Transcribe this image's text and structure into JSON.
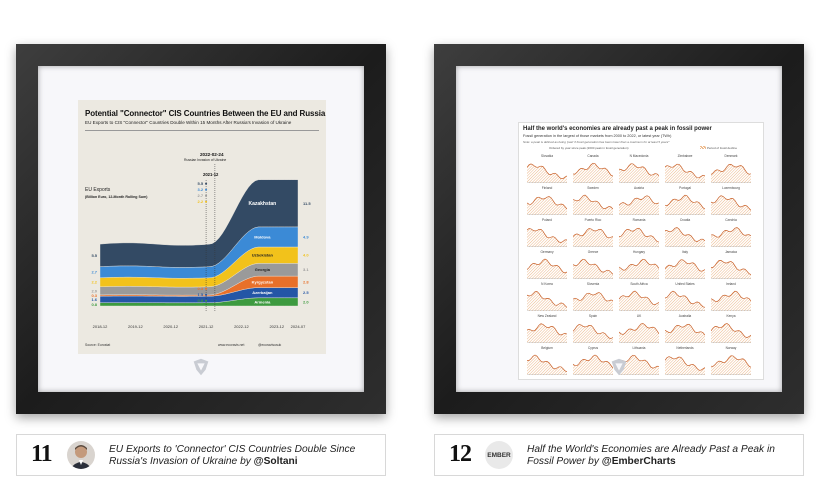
{
  "left_entry": {
    "number": "11",
    "title": "EU Exports to 'Connector' CIS Countries Double Since Russia's Invasion of Ukraine",
    "by": "by",
    "author": "@Soltani",
    "art": {
      "title": "Potential \"Connector\" CIS Countries Between the EU and Russia",
      "subtitle": "EU Exports to CIS \"Connector\" Countries Double Within 15 Months After Russia's Invasion of Ukraine",
      "ylabel_1": "EU Exports",
      "ylabel_2": "(Billion Euro, 12-Month Rolling Sum)",
      "annotation_date": "2022-02-24",
      "annotation_text": "Russian Invasion of Ukraine",
      "annotation_date2": "2021-12",
      "source": "Source: Eurostat",
      "website": "www.ecoravis.net",
      "twitter": "@ecoravisusuk"
    }
  },
  "right_entry": {
    "number": "12",
    "avatar_text": "EMBER",
    "title": "Half the World's Economies are Already Past a Peak in Fossil Power",
    "by": "by",
    "author": "@EmberCharts",
    "art": {
      "title": "Half the world's economies are already past a peak in fossil power",
      "subtitle": "Fossil generation in the largest of those markets from 2000 to 2022, or latest year (TWh)",
      "note": "Note: a peak is defined as being 'past' if fossil generation has been lower than a maximum for at least 5 years*",
      "legend_left": "Ordered by year since peak (2000 peak in fossil generation)",
      "legend_right": "Period of fossil decline"
    }
  },
  "chart_data": [
    {
      "type": "area",
      "title": "Potential \"Connector\" CIS Countries Between the EU and Russia",
      "subtitle": "EU Exports to CIS \"Connector\" Countries Double Within 15 Months After Russia's Invasion of Ukraine",
      "ylabel": "EU Exports (Billion Euro, 12-Month Rolling Sum)",
      "x": [
        "2018-12",
        "2019-12",
        "2020-12",
        "2021-12",
        "2022-12",
        "2023-12",
        "2024-07"
      ],
      "series": [
        {
          "name": "Armenia",
          "color": "#3d9a3f",
          "start": 0.8,
          "end": 2.0
        },
        {
          "name": "Azerbaijan",
          "color": "#2456a6",
          "start": 1.6,
          "end": 2.5
        },
        {
          "name": "Kyrgyzstan",
          "color": "#e8702a",
          "start": 0.3,
          "end": 2.8
        },
        {
          "name": "Georgia",
          "color": "#9a9a9a",
          "start": 2.0,
          "end": 3.1
        },
        {
          "name": "Uzbekistan",
          "color": "#f2c21b",
          "start": 2.2,
          "end": 4.0
        },
        {
          "name": "Moldova",
          "color": "#3b8ad6",
          "start": 2.7,
          "end": 4.9
        },
        {
          "name": "Kazakhstan",
          "color": "#334a64",
          "start": 5.5,
          "end": 11.5
        }
      ],
      "labels_2021_12": [
        "5.5",
        "3.2",
        "2.7",
        "2.2",
        "0.3",
        "1.5",
        "0.8"
      ],
      "left_values": [
        "5.5",
        "2.7",
        "2.2",
        "2.0",
        "0.3",
        "1.6",
        "0.8"
      ],
      "right_values": [
        "11.5",
        "4.9",
        "4.0",
        "3.1",
        "2.8",
        "2.5",
        "2.0"
      ]
    },
    {
      "type": "area",
      "title": "Half the world's economies are already past a peak in fossil power",
      "countries": [
        "Slovakia",
        "Canada",
        "N Macedonia",
        "Zimbabwe",
        "Denmark",
        "Finland",
        "Sweden",
        "Austria",
        "Portugal",
        "Luxembourg",
        "Poland",
        "Puerto Rico",
        "Romania",
        "Croatia",
        "Czechia",
        "Germany",
        "Greece",
        "Hungary",
        "Italy",
        "Jamaica",
        "N Korea",
        "Slovenia",
        "South Africa",
        "United States",
        "Ireland",
        "New Zealand",
        "Spain",
        "UK",
        "Australia",
        "Kenya",
        "Belgium",
        "Cyprus",
        "Lithuania",
        "Netherlands",
        "Norway"
      ]
    }
  ]
}
